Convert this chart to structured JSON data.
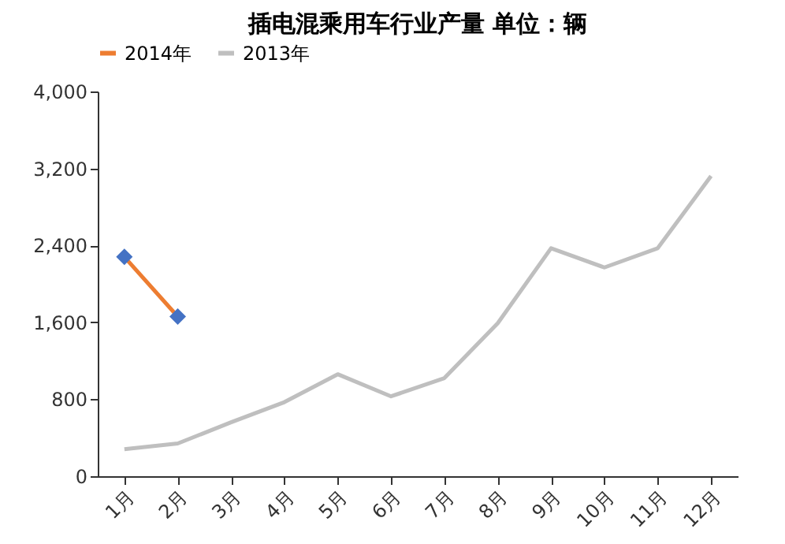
{
  "chart_data": {
    "type": "line",
    "title": "插电混乘用车行业产量     单位：辆",
    "categories": [
      "1月",
      "2月",
      "3月",
      "4月",
      "5月",
      "6月",
      "7月",
      "8月",
      "9月",
      "10月",
      "11月",
      "12月"
    ],
    "series": [
      {
        "name": "2014年",
        "color": "#ed7d31",
        "marker": "diamond",
        "colors": [
          "#4472c4",
          "#4472c4",
          null,
          null,
          null,
          null,
          null,
          null,
          null,
          null,
          null,
          null
        ],
        "values": [
          2280,
          1660,
          null,
          null,
          null,
          null,
          null,
          null,
          null,
          null,
          null,
          null
        ]
      },
      {
        "name": "2013年",
        "color": "#bfbfbf",
        "marker": "none",
        "values": [
          280,
          340,
          560,
          770,
          1060,
          830,
          1020,
          1590,
          2370,
          2170,
          2370,
          3120
        ]
      }
    ],
    "ylim": [
      0,
      4000
    ],
    "yticks": [
      0,
      800,
      {
        "value": 1600,
        "label": "1,600"
      },
      {
        "value": 2400,
        "label": "2,400"
      },
      {
        "value": 3200,
        "label": "3,200"
      },
      {
        "value": 4000,
        "label": "4,000"
      }
    ],
    "grid": false,
    "legend": "top"
  }
}
